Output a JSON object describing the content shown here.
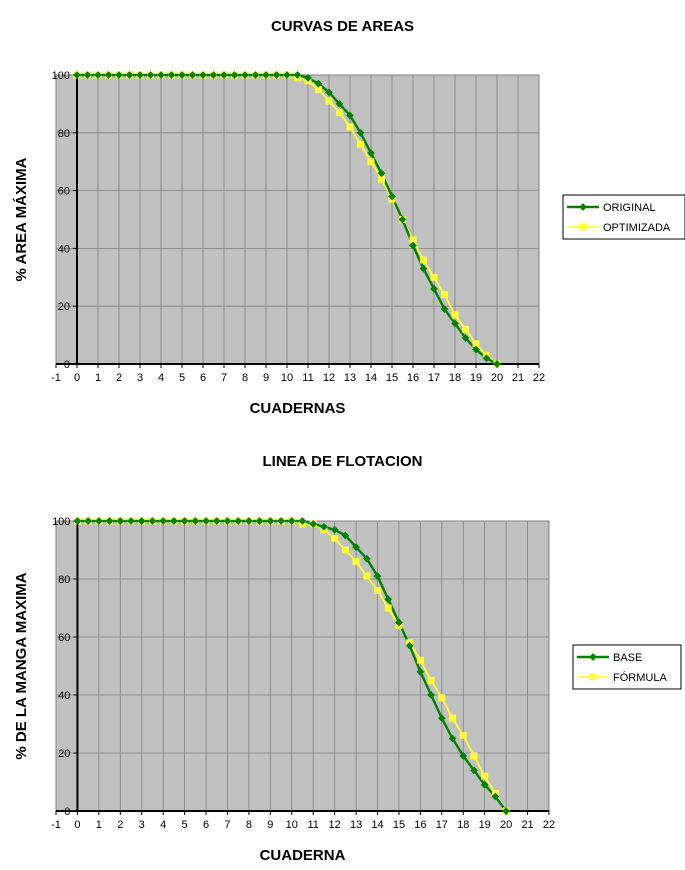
{
  "chart_data": [
    {
      "type": "line",
      "title": "CURVAS DE AREAS",
      "xlabel": "CUADERNAS",
      "ylabel": "% AREA MÁXIMA",
      "xlim": [
        -1,
        22
      ],
      "ylim": [
        0,
        100
      ],
      "xticks": [
        -1,
        0,
        1,
        2,
        3,
        4,
        5,
        6,
        7,
        8,
        9,
        10,
        11,
        12,
        13,
        14,
        15,
        16,
        17,
        18,
        19,
        20,
        21,
        22
      ],
      "yticks": [
        0,
        20,
        40,
        60,
        80,
        100
      ],
      "grid": true,
      "legend": "right",
      "series": [
        {
          "name": "ORIGINAL",
          "color": "#008000",
          "marker": "diamond",
          "x": [
            0,
            0.5,
            1,
            1.5,
            2,
            2.5,
            3,
            3.5,
            4,
            4.5,
            5,
            5.5,
            6,
            6.5,
            7,
            7.5,
            8,
            8.5,
            9,
            9.5,
            10,
            10.5,
            11,
            11.5,
            12,
            12.5,
            13,
            13.5,
            14,
            14.5,
            15,
            15.5,
            16,
            16.5,
            17,
            17.5,
            18,
            18.5,
            19,
            19.5,
            20
          ],
          "y": [
            100,
            100,
            100,
            100,
            100,
            100,
            100,
            100,
            100,
            100,
            100,
            100,
            100,
            100,
            100,
            100,
            100,
            100,
            100,
            100,
            100,
            100,
            99,
            97,
            94,
            90,
            86,
            80,
            73,
            66,
            58,
            50,
            41,
            33,
            26,
            19,
            14,
            9,
            5,
            2,
            0
          ]
        },
        {
          "name": "OPTIMIZADA",
          "color": "#FFFF33",
          "marker": "square",
          "x": [
            0,
            0.5,
            1,
            1.5,
            2,
            2.5,
            3,
            3.5,
            4,
            4.5,
            5,
            5.5,
            6,
            6.5,
            7,
            7.5,
            8,
            8.5,
            9,
            9.5,
            10,
            10.5,
            11,
            11.5,
            12,
            12.5,
            13,
            13.5,
            14,
            14.5,
            15,
            15.5,
            16,
            16.5,
            17,
            17.5,
            18,
            18.5,
            19,
            19.5,
            20
          ],
          "y": [
            100,
            100,
            100,
            100,
            100,
            100,
            100,
            100,
            100,
            100,
            100,
            100,
            100,
            100,
            100,
            100,
            100,
            100,
            100,
            100,
            100,
            99,
            98,
            95,
            91,
            87,
            82,
            76,
            70,
            64,
            57,
            50,
            43,
            36,
            30,
            24,
            17,
            12,
            7,
            3,
            0
          ]
        }
      ]
    },
    {
      "type": "line",
      "title": "LINEA DE FLOTACION",
      "xlabel": "CUADERNA",
      "ylabel": "% DE LA MANGA MAXIMA",
      "xlim": [
        -1,
        22
      ],
      "ylim": [
        0,
        100
      ],
      "xticks": [
        -1,
        0,
        1,
        2,
        3,
        4,
        5,
        6,
        7,
        8,
        9,
        10,
        11,
        12,
        13,
        14,
        15,
        16,
        17,
        18,
        19,
        20,
        21,
        22
      ],
      "yticks": [
        0,
        20,
        40,
        60,
        80,
        100
      ],
      "grid": true,
      "legend": "right",
      "series": [
        {
          "name": "BASE",
          "color": "#008000",
          "marker": "diamond",
          "x": [
            0,
            0.5,
            1,
            1.5,
            2,
            2.5,
            3,
            3.5,
            4,
            4.5,
            5,
            5.5,
            6,
            6.5,
            7,
            7.5,
            8,
            8.5,
            9,
            9.5,
            10,
            10.5,
            11,
            11.5,
            12,
            12.5,
            13,
            13.5,
            14,
            14.5,
            15,
            15.5,
            16,
            16.5,
            17,
            17.5,
            18,
            18.5,
            19,
            19.5,
            20
          ],
          "y": [
            100,
            100,
            100,
            100,
            100,
            100,
            100,
            100,
            100,
            100,
            100,
            100,
            100,
            100,
            100,
            100,
            100,
            100,
            100,
            100,
            100,
            100,
            99,
            98,
            97,
            95,
            91,
            87,
            81,
            73,
            65,
            57,
            48,
            40,
            32,
            25,
            19,
            14,
            9,
            5,
            0
          ]
        },
        {
          "name": "FÓRMULA",
          "color": "#FFFF33",
          "marker": "square",
          "x": [
            0,
            0.5,
            1,
            1.5,
            2,
            2.5,
            3,
            3.5,
            4,
            4.5,
            5,
            5.5,
            6,
            6.5,
            7,
            7.5,
            8,
            8.5,
            9,
            9.5,
            10,
            10.5,
            11,
            11.5,
            12,
            12.5,
            13,
            13.5,
            14,
            14.5,
            15,
            15.5,
            16,
            16.5,
            17,
            17.5,
            18,
            18.5,
            19,
            19.5,
            20
          ],
          "y": [
            100,
            100,
            100,
            100,
            100,
            100,
            100,
            100,
            100,
            100,
            100,
            100,
            100,
            100,
            100,
            100,
            100,
            100,
            100,
            100,
            100,
            99,
            99,
            97,
            94,
            90,
            86,
            81,
            76,
            70,
            64,
            58,
            52,
            45,
            39,
            32,
            26,
            19,
            12,
            6,
            0
          ]
        }
      ]
    }
  ]
}
